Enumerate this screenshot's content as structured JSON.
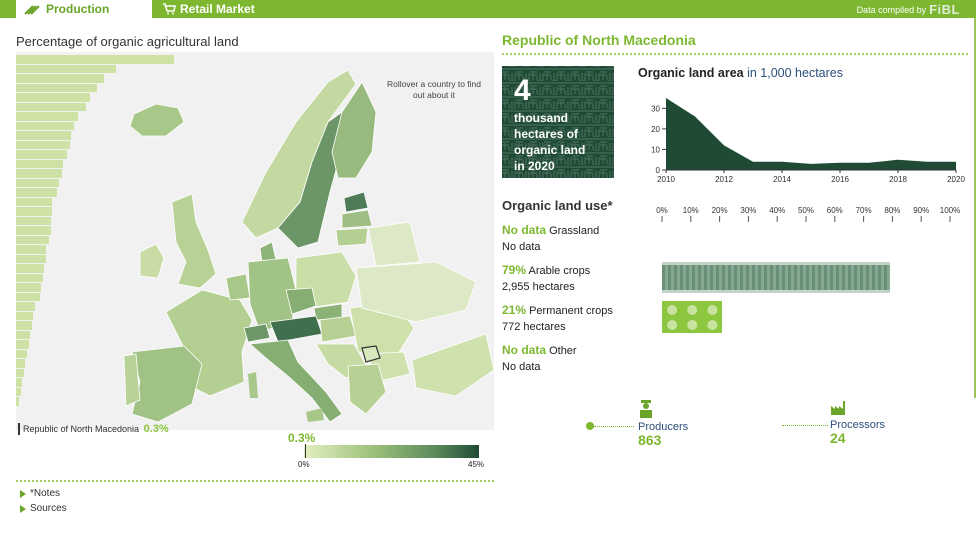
{
  "tabs": [
    {
      "label": "Production",
      "active": true,
      "icon": "wheat-icon"
    },
    {
      "label": "Retail Market",
      "active": false,
      "icon": "cart-icon"
    }
  ],
  "compiled": {
    "label": "Data compiled by",
    "brand": "FiBL"
  },
  "left": {
    "title": "Percentage of organic agricultural land",
    "rollover_hint": "Rollover a country to find out about it",
    "country_label": "Republic of North Macedonia",
    "country_value": "0.3%",
    "legend": {
      "value": "0.3%",
      "value_fraction": 0.0067,
      "min": "0%",
      "max": "45%"
    },
    "ranking_bars": [
      1.0,
      0.63,
      0.56,
      0.51,
      0.47,
      0.44,
      0.39,
      0.37,
      0.35,
      0.34,
      0.32,
      0.3,
      0.29,
      0.27,
      0.26,
      0.23,
      0.23,
      0.22,
      0.22,
      0.21,
      0.19,
      0.19,
      0.18,
      0.17,
      0.16,
      0.15,
      0.12,
      0.11,
      0.1,
      0.09,
      0.085,
      0.07,
      0.06,
      0.05,
      0.04,
      0.03,
      0.02
    ],
    "notes_label": "*Notes",
    "sources_label": "Sources"
  },
  "right": {
    "country": "Republic of North Macedonia",
    "hectares": {
      "number": "4",
      "line1": "thousand",
      "line2": "hectares of",
      "line3": "organic land",
      "line4": "in 2020"
    },
    "area_title": {
      "bold": "Organic land area",
      "rest": "in 1,000 hectares"
    },
    "use_title": "Organic land use*",
    "uses": [
      {
        "pct": "No data",
        "name": "Grassland",
        "detail": "No data"
      },
      {
        "pct": "79%",
        "name": "Arable crops",
        "detail": "2,955 hectares",
        "fraction": 0.79
      },
      {
        "pct": "21%",
        "name": "Permanent crops",
        "detail": "772 hectares",
        "fraction": 0.21
      },
      {
        "pct": "No data",
        "name": "Other",
        "detail": "No data"
      }
    ],
    "pct_axis": [
      "0%",
      "10%",
      "20%",
      "30%",
      "40%",
      "50%",
      "60%",
      "70%",
      "80%",
      "90%",
      "100%"
    ],
    "producers": {
      "label": "Producers",
      "value": "863",
      "icon": "farmer-icon"
    },
    "processors": {
      "label": "Processors",
      "value": "24",
      "icon": "factory-icon"
    }
  },
  "chart_data": {
    "type": "area",
    "title": "Organic land area in 1,000 hectares",
    "x": [
      2010,
      2011,
      2012,
      2013,
      2014,
      2015,
      2016,
      2017,
      2018,
      2019,
      2020
    ],
    "series": [
      {
        "values": [
          35,
          26,
          12,
          4,
          4,
          3,
          3.5,
          3.5,
          5,
          4,
          4
        ]
      }
    ],
    "xticks": [
      2010,
      2012,
      2014,
      2016,
      2018,
      2020
    ],
    "yticks": [
      0,
      10,
      20,
      30
    ],
    "ylim": [
      0,
      36
    ],
    "xlim": [
      2010,
      2020
    ],
    "color": "#1f4b35"
  }
}
